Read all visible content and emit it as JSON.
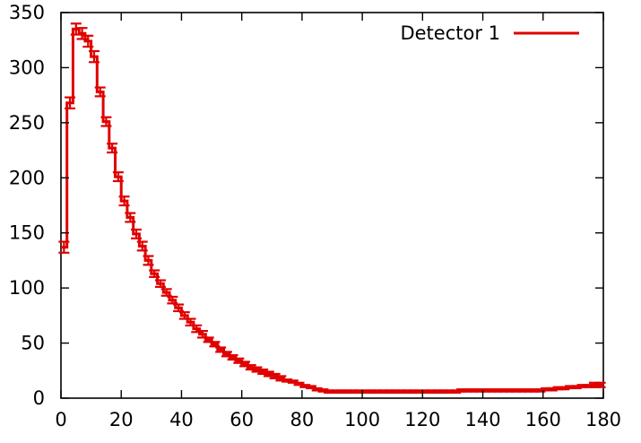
{
  "chart_data": {
    "type": "line",
    "title": "",
    "xlabel": "",
    "ylabel": "",
    "xlim": [
      0,
      180
    ],
    "ylim": [
      0,
      350
    ],
    "xticks": [
      "0",
      "20",
      "40",
      "60",
      "80",
      "100",
      "120",
      "140",
      "160",
      "180"
    ],
    "yticks": [
      "0",
      "50",
      "100",
      "150",
      "200",
      "250",
      "300",
      "350"
    ],
    "grid": false,
    "legend_position": "top-right",
    "style": "histogram-steps-with-errorbars",
    "series": [
      {
        "name": "Detector 1",
        "color": "#e00000",
        "x": [
          0,
          2,
          4,
          6,
          8,
          10,
          12,
          14,
          16,
          18,
          20,
          22,
          24,
          26,
          28,
          30,
          32,
          34,
          36,
          38,
          40,
          42,
          44,
          46,
          48,
          50,
          52,
          54,
          56,
          58,
          60,
          62,
          64,
          66,
          68,
          70,
          72,
          74,
          76,
          78,
          80,
          82,
          84,
          86,
          88,
          90,
          92,
          94,
          96,
          98,
          100,
          102,
          104,
          106,
          108,
          110,
          112,
          114,
          116,
          118,
          120,
          122,
          124,
          126,
          128,
          130,
          132,
          134,
          136,
          138,
          140,
          142,
          144,
          146,
          148,
          150,
          152,
          154,
          156,
          158,
          160,
          162,
          164,
          166,
          168,
          170,
          172,
          174,
          176,
          178
        ],
        "values": [
          137,
          268,
          335,
          331,
          324,
          310,
          278,
          251,
          227,
          201,
          179,
          164,
          149,
          138,
          125,
          113,
          104,
          96,
          89,
          82,
          75,
          69,
          63,
          58,
          53,
          49,
          44,
          40,
          37,
          34,
          31,
          28,
          26,
          24,
          22,
          20,
          18,
          16,
          15,
          13,
          11,
          10,
          8,
          7,
          6,
          6,
          6,
          6,
          6,
          6,
          6,
          6,
          6,
          6,
          6,
          6,
          6,
          6,
          6,
          6,
          6,
          6,
          6,
          6,
          6,
          6,
          7,
          7,
          7,
          7,
          7,
          7,
          7,
          7,
          7,
          7,
          7,
          7,
          7,
          7,
          8,
          8,
          9,
          9,
          10,
          10,
          11,
          11,
          12,
          12
        ],
        "errors": [
          5,
          5,
          5,
          5,
          5,
          5,
          4,
          4,
          4,
          4,
          4,
          4,
          4,
          4,
          4,
          3,
          3,
          3,
          3,
          3,
          3,
          3,
          3,
          3,
          2,
          2,
          2,
          2,
          2,
          2,
          2,
          2,
          2,
          2,
          2,
          2,
          2,
          1,
          1,
          1,
          1,
          1,
          1,
          1,
          1,
          1,
          1,
          1,
          1,
          1,
          1,
          1,
          1,
          1,
          1,
          1,
          1,
          1,
          1,
          1,
          1,
          1,
          1,
          1,
          1,
          1,
          1,
          1,
          1,
          1,
          1,
          1,
          1,
          1,
          1,
          1,
          1,
          1,
          1,
          1,
          1,
          1,
          1,
          1,
          1,
          1,
          1,
          1,
          2,
          2
        ]
      }
    ]
  }
}
